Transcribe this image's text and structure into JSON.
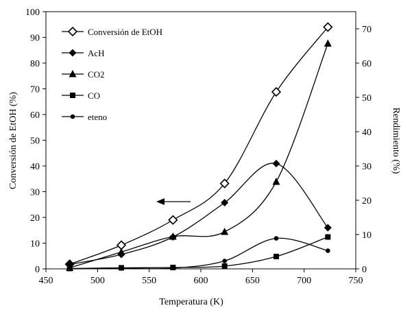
{
  "chart_data": {
    "type": "line",
    "xlabel": "Temperatura (K)",
    "ylabel_left": "Conversión de EtOH (%)",
    "ylabel_right": "Rendimiento (%)",
    "xlim": [
      450,
      750
    ],
    "xticks": [
      450,
      500,
      550,
      600,
      650,
      700,
      750
    ],
    "ylim_left": [
      0,
      100
    ],
    "yticks_left": [
      0,
      10,
      20,
      30,
      40,
      50,
      60,
      70,
      80,
      90,
      100
    ],
    "ylim_right": [
      0,
      75
    ],
    "yticks_right": [
      0,
      10,
      20,
      30,
      40,
      50,
      60,
      70
    ],
    "legend_position": "top-left",
    "grid": false,
    "annotation": {
      "type": "arrow",
      "direction": "left"
    },
    "series": [
      {
        "name": "Conversión de EtOH",
        "axis": "left",
        "marker": "diamond-open",
        "x": [
          473,
          523,
          573,
          623,
          673,
          723
        ],
        "y": [
          1.8,
          9.2,
          19.0,
          33.2,
          68.8,
          94.0
        ]
      },
      {
        "name": "AcH",
        "axis": "right",
        "marker": "diamond",
        "x": [
          473,
          523,
          573,
          623,
          673,
          723
        ],
        "y": [
          1.3,
          4.2,
          9.3,
          19.3,
          30.7,
          12.0
        ]
      },
      {
        "name": "CO2",
        "axis": "right",
        "marker": "triangle",
        "x": [
          473,
          523,
          573,
          623,
          673,
          723
        ],
        "y": [
          0.3,
          4.9,
          9.4,
          10.8,
          25.4,
          65.7
        ]
      },
      {
        "name": "CO",
        "axis": "right",
        "marker": "square",
        "x": [
          473,
          523,
          573,
          623,
          673,
          723
        ],
        "y": [
          0.1,
          0.3,
          0.4,
          0.8,
          3.6,
          9.3
        ]
      },
      {
        "name": "eteno",
        "axis": "right",
        "marker": "circle",
        "x": [
          473,
          523,
          573,
          623,
          673,
          723
        ],
        "y": [
          0.0,
          0.1,
          0.2,
          2.3,
          8.9,
          5.3
        ]
      }
    ]
  }
}
